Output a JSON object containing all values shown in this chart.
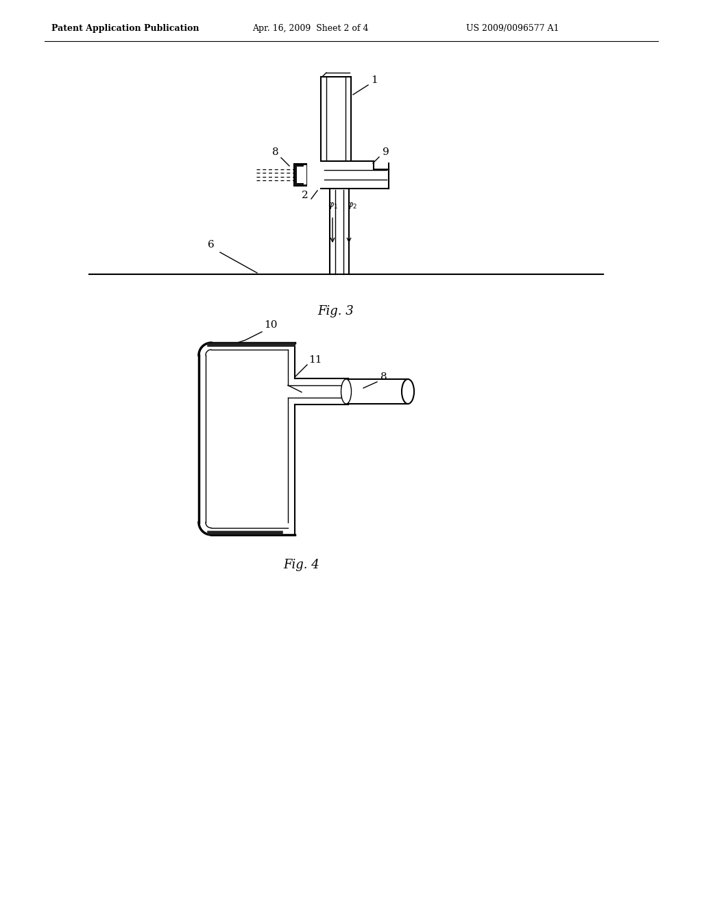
{
  "title_left": "Patent Application Publication",
  "title_mid": "Apr. 16, 2009  Sheet 2 of 4",
  "title_right": "US 2009/0096577 A1",
  "fig3_label": "Fig. 3",
  "fig4_label": "Fig. 4",
  "bg_color": "#ffffff",
  "line_color": "#000000"
}
